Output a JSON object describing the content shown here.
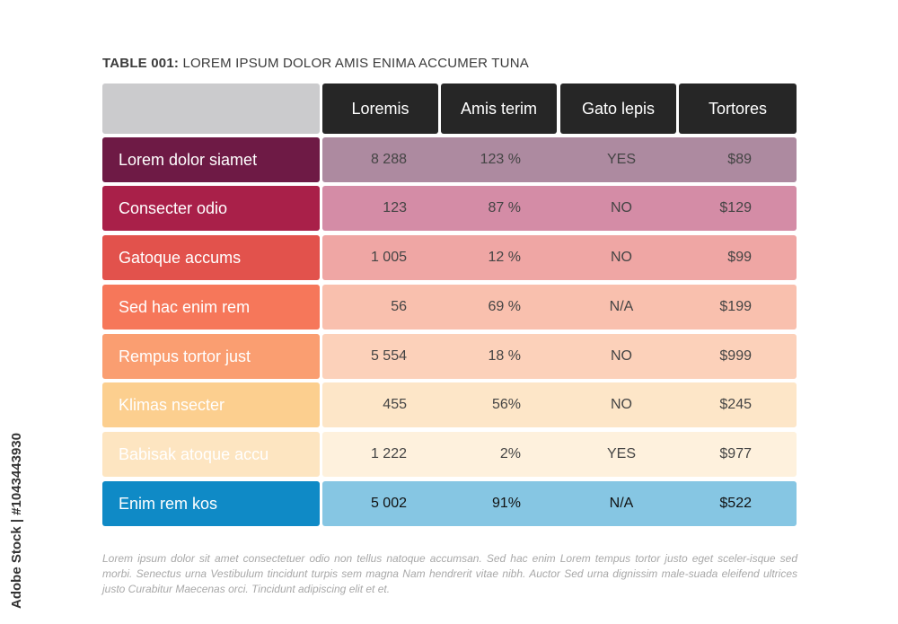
{
  "title": {
    "bold": "TABLE 001:",
    "text": " LOREM IPSUM DOLOR AMIS ENIMA ACCUMER TUNA"
  },
  "columns": [
    "Loremis",
    "Amis terim",
    "Gato lepis",
    "Tortores"
  ],
  "rows": [
    {
      "label": "Lorem dolor siamet",
      "c1": "8 288",
      "c2": "123 %",
      "c3": "YES",
      "c4": "$89",
      "label_color": "#6e1a45",
      "value_color": "#ad8aa0"
    },
    {
      "label": "Consecter odio",
      "c1": "123",
      "c2": "87 %",
      "c3": "NO",
      "c4": "$129",
      "label_color": "#a92049",
      "value_color": "#d48ca6"
    },
    {
      "label": "Gatoque accums",
      "c1": "1 005",
      "c2": "12 %",
      "c3": "NO",
      "c4": "$99",
      "label_color": "#e2524c",
      "value_color": "#efa6a4"
    },
    {
      "label": "Sed hac enim rem",
      "c1": "56",
      "c2": "69 %",
      "c3": "N/A",
      "c4": "$199",
      "label_color": "#f6775a",
      "value_color": "#f9c0ae"
    },
    {
      "label": "Rempus tortor just",
      "c1": "5 554",
      "c2": "18 %",
      "c3": "NO",
      "c4": "$999",
      "label_color": "#fa9e71",
      "value_color": "#fcd1ba"
    },
    {
      "label": "Klimas nsecter",
      "c1": "455",
      "c2": "56%",
      "c3": "NO",
      "c4": "$245",
      "label_color": "#fccf8f",
      "value_color": "#fde6c8"
    },
    {
      "label": "Babisak atoque accu",
      "c1": "1 222",
      "c2": "2%",
      "c3": "YES",
      "c4": "$977",
      "label_color": "#fde5c1",
      "value_color": "#fef1dd"
    },
    {
      "label": "Enim rem kos",
      "c1": "5 002",
      "c2": "91%",
      "c3": "N/A",
      "c4": "$522",
      "label_color": "#0f8ac6",
      "value_color": "#86c6e3"
    }
  ],
  "footnote": "Lorem ipsum dolor sit amet consectetuer odio non tellus natoque accumsan. Sed hac enim Lorem tempus tortor justo eget sceler-isque sed morbi. Senectus urna Vestibulum tincidunt turpis sem magna Nam hendrerit vitae nibh. Auctor Sed urna dignissim male-suada eleifend ultrices justo Curabitur Maecenas orci. Tincidunt adipiscing elit et et.",
  "watermark": "Adobe Stock | #1043443930"
}
